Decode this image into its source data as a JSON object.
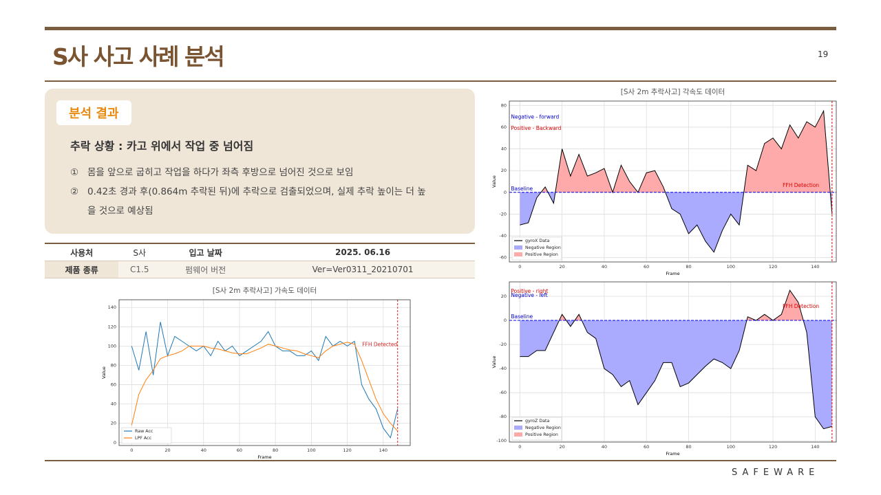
{
  "header": {
    "title": "S사 사고 사례 분석",
    "page": "19"
  },
  "summary": {
    "label": "분석 결과",
    "heading": "추락 상황 : 카고 위에서 작업 중 넘어짐",
    "items": [
      {
        "marker": "①",
        "text": "몸을 앞으로 굽히고 작업을 하다가 좌측 후방으로 넘어진 것으로 보임"
      },
      {
        "marker": "②",
        "text": "0.42초 경과 후(0.864m 추락된 뒤)에 추락으로 검출되었으며, 실제 추락 높이는 더 높을 것으로 예상됨"
      }
    ]
  },
  "table": {
    "rows": [
      [
        "사용처",
        "S사",
        "입고 날짜",
        "2025. 06.16"
      ],
      [
        "제품 종류",
        "C1.5",
        "펌웨어 버전",
        "Ver=Ver0311_20210701"
      ]
    ]
  },
  "footer": {
    "logo": "SAFEWARE"
  },
  "chart_data": [
    {
      "type": "line",
      "title": "[S사 2m 추락사고] 가속도 데이터",
      "xlabel": "Frame",
      "ylabel": "Value",
      "grid": true,
      "legend": "lower left",
      "x": [
        0,
        4,
        8,
        12,
        16,
        20,
        24,
        28,
        32,
        36,
        40,
        44,
        48,
        52,
        56,
        60,
        64,
        68,
        72,
        76,
        80,
        84,
        88,
        92,
        96,
        100,
        104,
        108,
        112,
        116,
        120,
        124,
        128,
        132,
        136,
        140,
        144,
        148
      ],
      "series": [
        {
          "name": "Raw Acc",
          "color": "#1f77b4",
          "values": [
            100,
            75,
            115,
            70,
            125,
            90,
            110,
            105,
            100,
            95,
            100,
            90,
            105,
            95,
            100,
            90,
            95,
            100,
            105,
            115,
            100,
            95,
            95,
            90,
            90,
            95,
            85,
            110,
            100,
            105,
            100,
            105,
            60,
            45,
            35,
            15,
            5,
            35
          ]
        },
        {
          "name": "LPF Acc",
          "color": "#ff7f0e",
          "values": [
            18,
            50,
            65,
            75,
            87,
            90,
            92,
            95,
            100,
            100,
            100,
            98,
            97,
            95,
            93,
            92,
            92,
            95,
            98,
            102,
            100,
            98,
            96,
            95,
            92,
            90,
            88,
            95,
            100,
            102,
            104,
            102,
            85,
            65,
            45,
            30,
            20,
            12
          ]
        }
      ],
      "vline": {
        "value": 148,
        "color": "#d62728"
      },
      "annotations": [
        {
          "text": "FFH Detected",
          "color": "#d62728"
        }
      ],
      "xlim": [
        -7,
        155
      ],
      "ylim": [
        -3,
        148
      ],
      "xticks": [
        0,
        20,
        40,
        60,
        80,
        100,
        120,
        140
      ],
      "yticks": [
        0,
        20,
        40,
        60,
        80,
        100,
        120,
        140
      ]
    },
    {
      "type": "line",
      "title": "[S사 2m 추락사고] 각속도 데이터",
      "xlabel": "Frame",
      "ylabel": "Value",
      "grid": true,
      "legend": "lower left",
      "x": [
        0,
        4,
        8,
        12,
        16,
        20,
        24,
        28,
        32,
        36,
        40,
        44,
        48,
        52,
        56,
        60,
        64,
        68,
        72,
        76,
        80,
        84,
        88,
        92,
        96,
        100,
        104,
        108,
        112,
        116,
        120,
        124,
        128,
        132,
        136,
        140,
        144,
        148
      ],
      "series": [
        {
          "name": "gyroX Data",
          "color": "#000000",
          "values": [
            -30,
            -28,
            -5,
            5,
            -10,
            40,
            15,
            35,
            15,
            18,
            22,
            0,
            25,
            10,
            0,
            18,
            20,
            5,
            -15,
            -20,
            -38,
            -30,
            -45,
            -55,
            -35,
            -20,
            -30,
            25,
            20,
            45,
            50,
            40,
            62,
            50,
            65,
            60,
            75,
            -20
          ]
        }
      ],
      "regions": [
        {
          "name": "Negative Region",
          "color": "#aaaaff"
        },
        {
          "name": "Positive Region",
          "color": "#ffaaaa"
        }
      ],
      "baseline": {
        "value": 0,
        "color": "#0000dd"
      },
      "vline": {
        "value": 148,
        "color": "#dd0000"
      },
      "annotations": [
        {
          "text": "Negative - forward",
          "color": "#0000cc"
        },
        {
          "text": "Positive - Backward",
          "color": "#dd0000"
        },
        {
          "text": "Baseline",
          "color": "#0000cc"
        },
        {
          "text": "FFH Detection",
          "color": "#dd0000"
        }
      ],
      "xlim": [
        -5,
        150
      ],
      "ylim": [
        -64,
        84
      ],
      "xticks": [
        0,
        20,
        40,
        60,
        80,
        100,
        120,
        140
      ],
      "yticks": [
        -60,
        -40,
        -20,
        0,
        20,
        40,
        60,
        80
      ]
    },
    {
      "type": "line",
      "title": null,
      "xlabel": "Frame",
      "ylabel": "Value",
      "grid": true,
      "legend": "lower left",
      "x": [
        0,
        4,
        8,
        12,
        16,
        20,
        24,
        28,
        32,
        36,
        40,
        44,
        48,
        52,
        56,
        60,
        64,
        68,
        72,
        76,
        80,
        84,
        88,
        92,
        96,
        100,
        104,
        108,
        112,
        116,
        120,
        124,
        128,
        132,
        136,
        140,
        144,
        148
      ],
      "series": [
        {
          "name": "gyroZ Data",
          "color": "#000000",
          "values": [
            -30,
            -30,
            -25,
            -25,
            -10,
            5,
            -5,
            5,
            -10,
            -15,
            -40,
            -45,
            -55,
            -50,
            -70,
            -60,
            -50,
            -35,
            -35,
            -55,
            -52,
            -45,
            -38,
            -32,
            -35,
            -40,
            -25,
            3,
            0,
            5,
            0,
            5,
            25,
            15,
            -10,
            -80,
            -90,
            -88
          ]
        }
      ],
      "regions": [
        {
          "name": "Negative Region",
          "color": "#aaaaff"
        },
        {
          "name": "Positive Region",
          "color": "#ffaaaa"
        }
      ],
      "baseline": {
        "value": 0,
        "color": "#0000dd"
      },
      "vline": {
        "value": 148,
        "color": "#dd0000"
      },
      "annotations": [
        {
          "text": "Positive - right",
          "color": "#dd0000"
        },
        {
          "text": "Negative - left",
          "color": "#0000cc"
        },
        {
          "text": "Baseline",
          "color": "#0000cc"
        },
        {
          "text": "FFH Detection",
          "color": "#dd0000"
        }
      ],
      "xlim": [
        -5,
        150
      ],
      "ylim": [
        -101,
        32
      ],
      "xticks": [
        0,
        20,
        40,
        60,
        80,
        100,
        120,
        140
      ],
      "yticks": [
        -100,
        -80,
        -60,
        -40,
        -20,
        0,
        20
      ]
    }
  ]
}
